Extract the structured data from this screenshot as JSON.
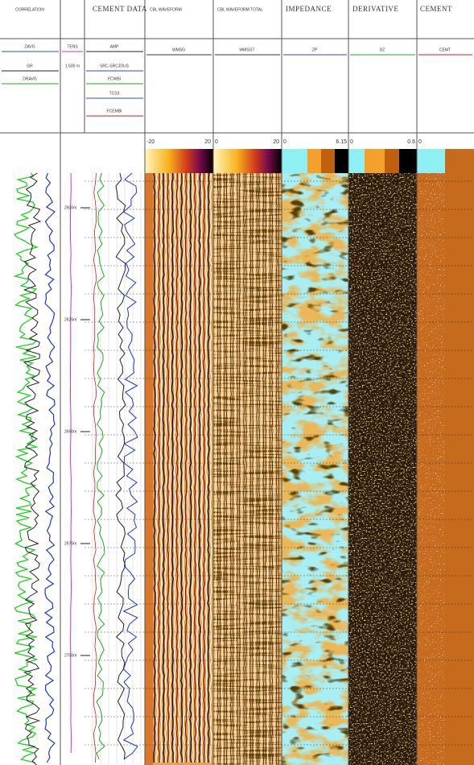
{
  "header": {
    "correlation": "CORRELATION",
    "cement_data": "CEMENT DATA",
    "cbl_waveform": "CBL WAVEFORM",
    "cbl_waveform_total": "CBL WAVEFORM TOTAL",
    "impedance": "IMPEDANCE",
    "derivative": "DERIVATIVE",
    "cement": "CEMENT"
  },
  "curves": {
    "zavg": "ZAVG",
    "gr": "GR",
    "dravg": "DRAVG",
    "tens": "TENS",
    "depth_scale": "1:500 m",
    "amp": "AMP",
    "src": "SRC-SRCJDUS",
    "fcwbi": "FCWBI",
    "tcs3": "TCS3",
    "fcemb": "FCEMBI",
    "wmsg": "WMSG",
    "wmsgt": "WMSGT",
    "zp": "ZP",
    "dz": "DZ",
    "cemt": "CEMT"
  },
  "scales": {
    "wf_min": "-20",
    "wf_max": "20",
    "wft_min": "0",
    "wft_max": "20",
    "zp_min": "0",
    "zp_max": "6.15",
    "dz_min": "0",
    "dz_max": "0.6",
    "cem_min": "0"
  },
  "depths": [
    "2600m",
    "2625m",
    "2650m",
    "2675m",
    "2700m"
  ]
}
